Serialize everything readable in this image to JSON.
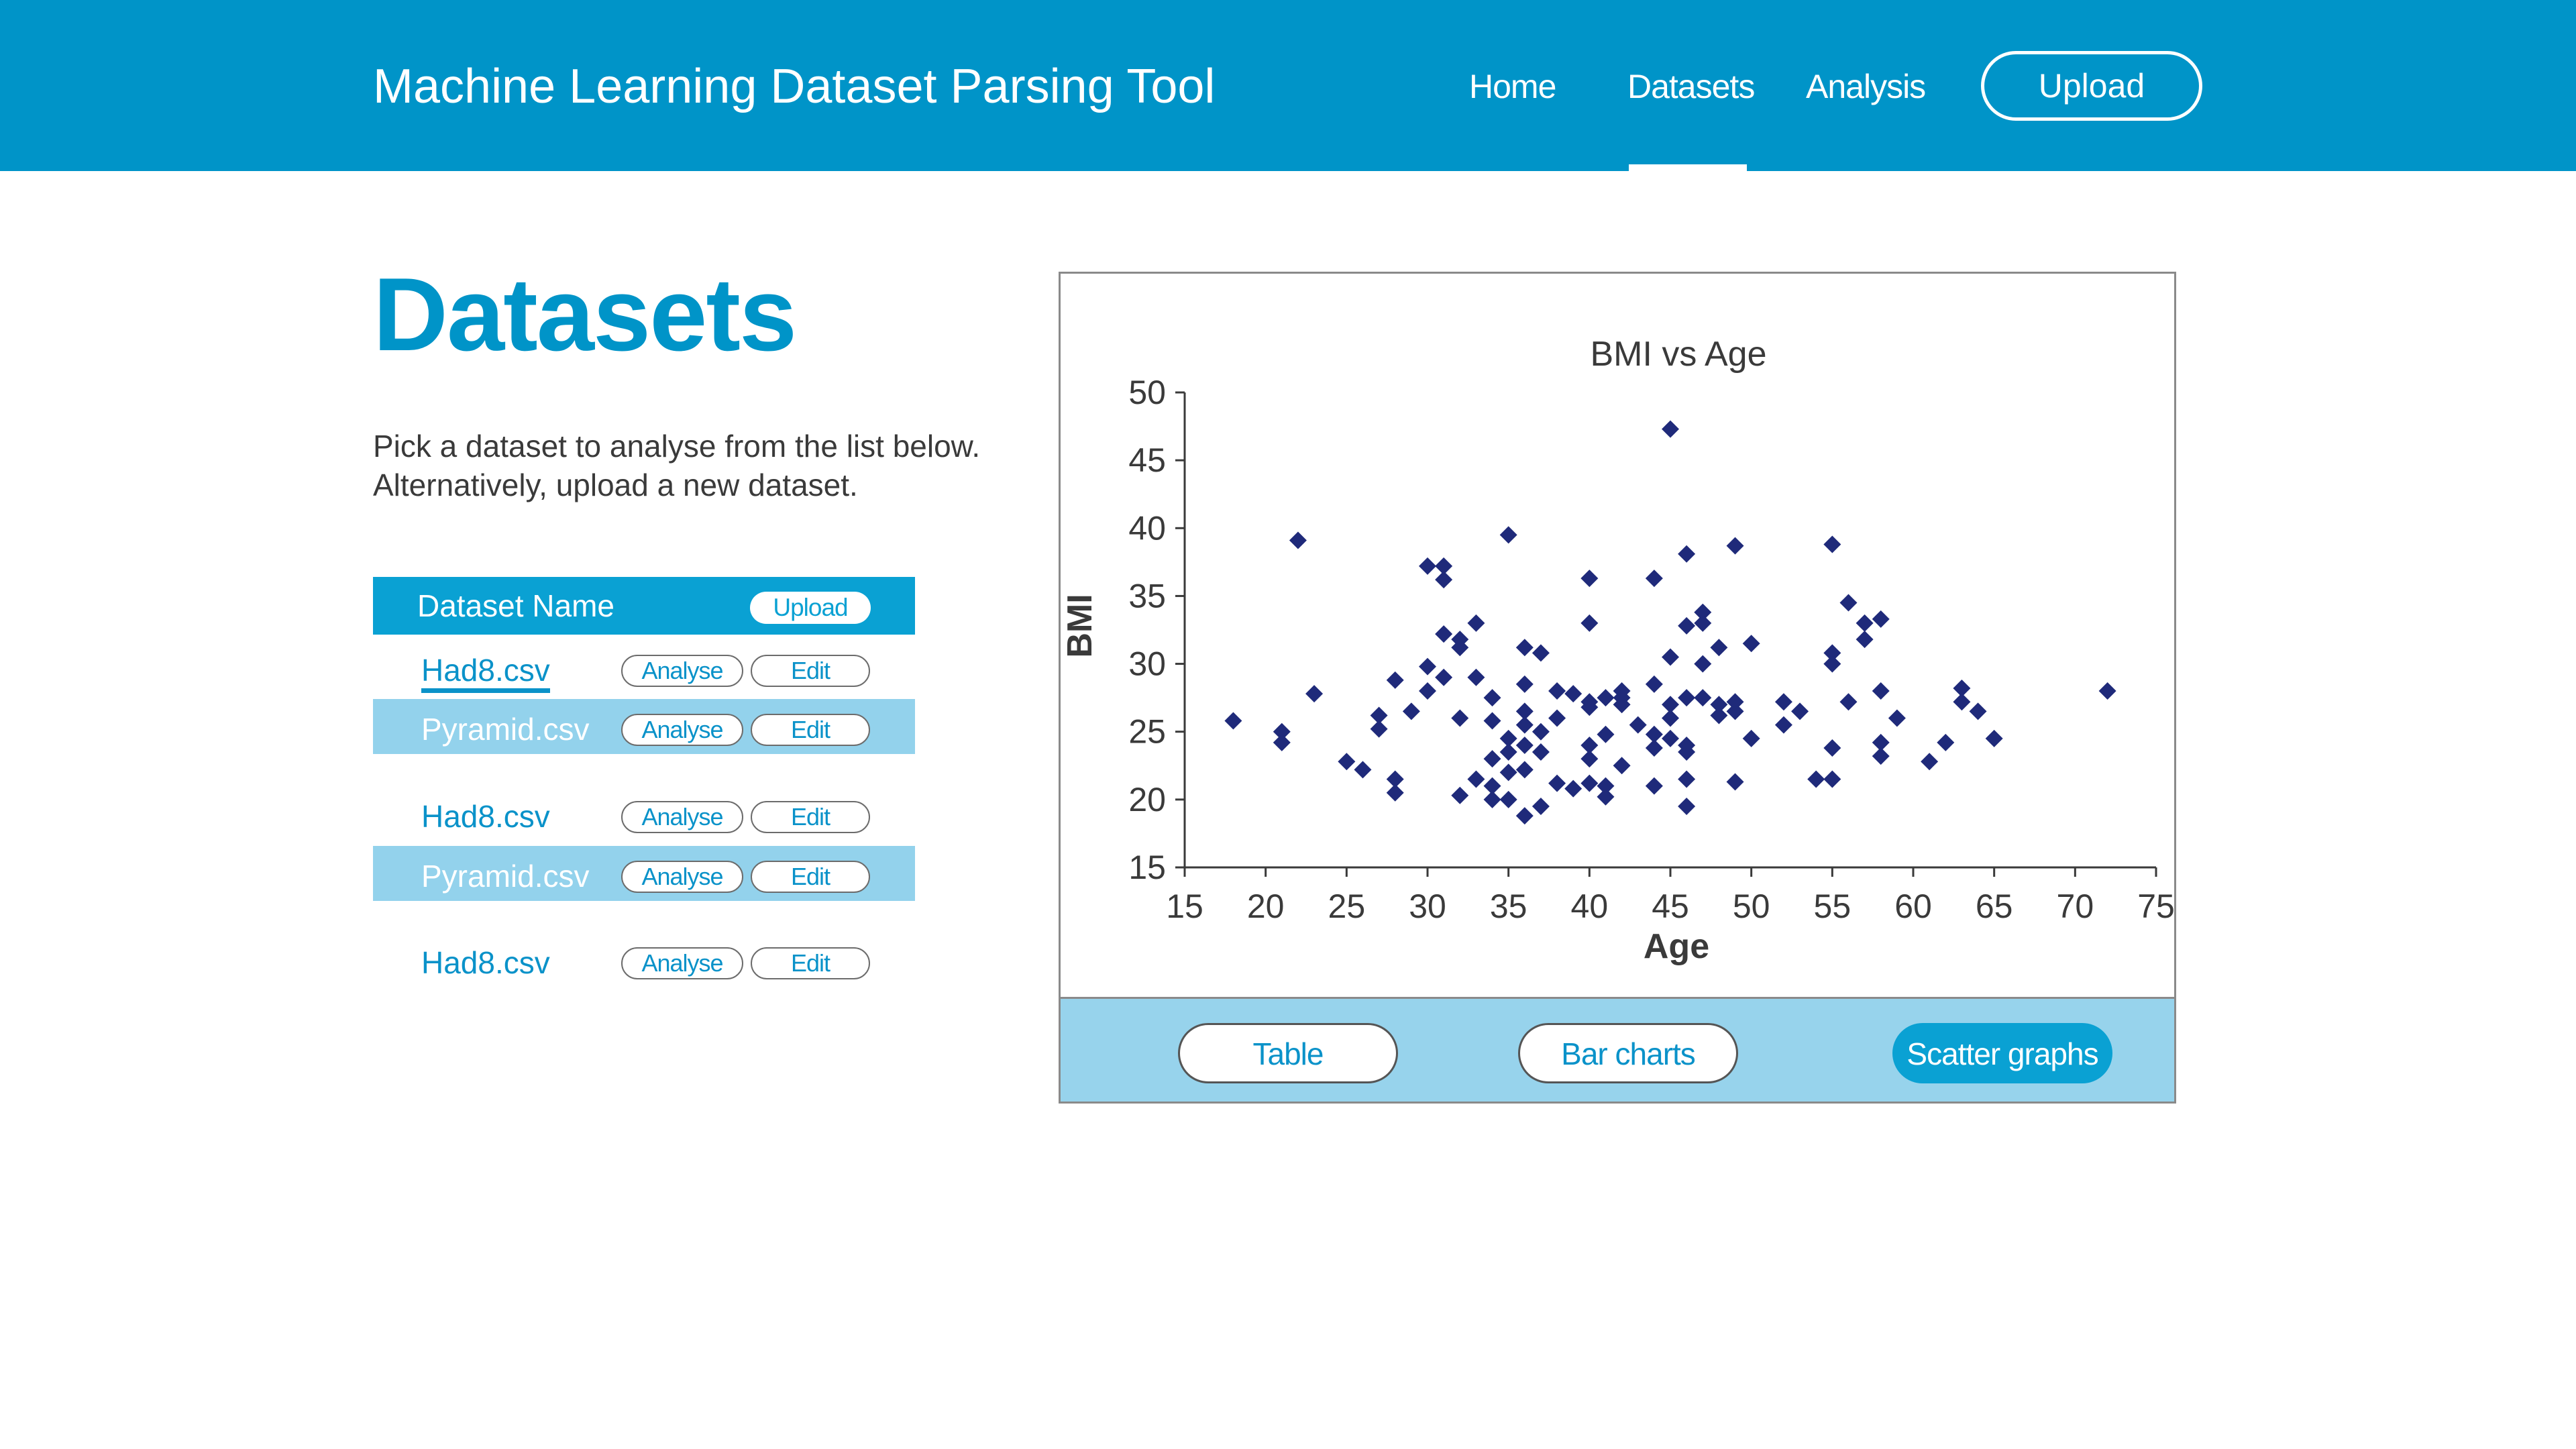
{
  "header": {
    "title": "Machine Learning Dataset Parsing Tool",
    "nav": {
      "home": "Home",
      "datasets": "Datasets",
      "analysis": "Analysis"
    },
    "upload_label": "Upload",
    "active_nav": "Datasets"
  },
  "page": {
    "title": "Datasets",
    "intro_line1": "Pick a dataset to analyse from the list below.",
    "intro_line2": "Alternatively, upload a new dataset."
  },
  "dataset_table": {
    "header_label": "Dataset Name",
    "upload_label": "Upload",
    "analyse_label": "Analyse",
    "edit_label": "Edit",
    "rows": [
      {
        "name": "Had8.csv",
        "active": true
      },
      {
        "name": "Pyramid.csv"
      },
      {
        "name": "Had8.csv"
      },
      {
        "name": "Pyramid.csv"
      },
      {
        "name": "Had8.csv"
      }
    ]
  },
  "view_buttons": {
    "table": "Table",
    "bar_charts": "Bar charts",
    "scatter_graphs": "Scatter graphs",
    "active": "Scatter graphs"
  },
  "colors": {
    "brand": "#0094c8",
    "row_alt": "#93d2ec",
    "footer_bg": "#97d3ec",
    "marker": "#1f2a7a"
  },
  "chart_data": {
    "type": "scatter",
    "title": "BMI vs Age",
    "xlabel": "Age",
    "ylabel": "BMI",
    "xlim": [
      15,
      75
    ],
    "ylim": [
      15,
      50
    ],
    "xticks": [
      15,
      20,
      25,
      30,
      35,
      40,
      45,
      50,
      55,
      60,
      65,
      70,
      75
    ],
    "yticks": [
      15,
      20,
      25,
      30,
      35,
      40,
      45,
      50
    ],
    "grid": false,
    "marker": "diamond",
    "points": [
      [
        18,
        25.8
      ],
      [
        21,
        25
      ],
      [
        21,
        24.2
      ],
      [
        22,
        39.1
      ],
      [
        23,
        27.8
      ],
      [
        25,
        22.8
      ],
      [
        26,
        22.2
      ],
      [
        27,
        26.2
      ],
      [
        27,
        25.2
      ],
      [
        28,
        28.8
      ],
      [
        28,
        21.5
      ],
      [
        28,
        20.5
      ],
      [
        29,
        26.5
      ],
      [
        30,
        37.2
      ],
      [
        30,
        29.8
      ],
      [
        30,
        28
      ],
      [
        31,
        37.2
      ],
      [
        31,
        36.2
      ],
      [
        31,
        32.2
      ],
      [
        31,
        29
      ],
      [
        32,
        31.8
      ],
      [
        32,
        31.2
      ],
      [
        32,
        26
      ],
      [
        32,
        20.3
      ],
      [
        33,
        33
      ],
      [
        33,
        29
      ],
      [
        33,
        21.5
      ],
      [
        34,
        27.5
      ],
      [
        34,
        25.8
      ],
      [
        34,
        23
      ],
      [
        34,
        21
      ],
      [
        34,
        20
      ],
      [
        35,
        39.5
      ],
      [
        35,
        24.5
      ],
      [
        35,
        23.5
      ],
      [
        35,
        22
      ],
      [
        35,
        20
      ],
      [
        36,
        31.2
      ],
      [
        36,
        28.5
      ],
      [
        36,
        26.5
      ],
      [
        36,
        25.5
      ],
      [
        36,
        24
      ],
      [
        36,
        22.2
      ],
      [
        36,
        18.8
      ],
      [
        37,
        30.8
      ],
      [
        37,
        25
      ],
      [
        37,
        23.5
      ],
      [
        37,
        19.5
      ],
      [
        38,
        28
      ],
      [
        38,
        26
      ],
      [
        38,
        21.2
      ],
      [
        39,
        27.8
      ],
      [
        39,
        20.8
      ],
      [
        40,
        36.3
      ],
      [
        40,
        33
      ],
      [
        40,
        27.2
      ],
      [
        40,
        26.8
      ],
      [
        40,
        24
      ],
      [
        40,
        23
      ],
      [
        40,
        21.2
      ],
      [
        41,
        27.5
      ],
      [
        41,
        24.8
      ],
      [
        41,
        21
      ],
      [
        41,
        20.2
      ],
      [
        42,
        28
      ],
      [
        42,
        27.5
      ],
      [
        42,
        27
      ],
      [
        42,
        22.5
      ],
      [
        43,
        25.5
      ],
      [
        44,
        36.3
      ],
      [
        44,
        28.5
      ],
      [
        44,
        24.8
      ],
      [
        44,
        23.8
      ],
      [
        44,
        21
      ],
      [
        45,
        47.3
      ],
      [
        45,
        30.5
      ],
      [
        45,
        27
      ],
      [
        45,
        26
      ],
      [
        45,
        24.5
      ],
      [
        46,
        38.1
      ],
      [
        46,
        32.8
      ],
      [
        46,
        27.5
      ],
      [
        46,
        24
      ],
      [
        46,
        23.5
      ],
      [
        46,
        21.5
      ],
      [
        46,
        19.5
      ],
      [
        47,
        33.8
      ],
      [
        47,
        33
      ],
      [
        47,
        30
      ],
      [
        47,
        27.5
      ],
      [
        48,
        31.2
      ],
      [
        48,
        27
      ],
      [
        48,
        26.2
      ],
      [
        49,
        38.7
      ],
      [
        49,
        27.2
      ],
      [
        49,
        26.5
      ],
      [
        49,
        21.3
      ],
      [
        50,
        31.5
      ],
      [
        50,
        24.5
      ],
      [
        52,
        27.2
      ],
      [
        52,
        25.5
      ],
      [
        53,
        26.5
      ],
      [
        54,
        21.5
      ],
      [
        55,
        38.8
      ],
      [
        55,
        30.8
      ],
      [
        55,
        30
      ],
      [
        55,
        23.8
      ],
      [
        55,
        21.5
      ],
      [
        56,
        34.5
      ],
      [
        56,
        27.2
      ],
      [
        57,
        33
      ],
      [
        57,
        31.8
      ],
      [
        58,
        33.3
      ],
      [
        58,
        28
      ],
      [
        58,
        24.2
      ],
      [
        58,
        23.2
      ],
      [
        59,
        26
      ],
      [
        61,
        22.8
      ],
      [
        62,
        24.2
      ],
      [
        63,
        28.2
      ],
      [
        63,
        27.2
      ],
      [
        64,
        26.5
      ],
      [
        65,
        24.5
      ],
      [
        72,
        28
      ]
    ]
  }
}
